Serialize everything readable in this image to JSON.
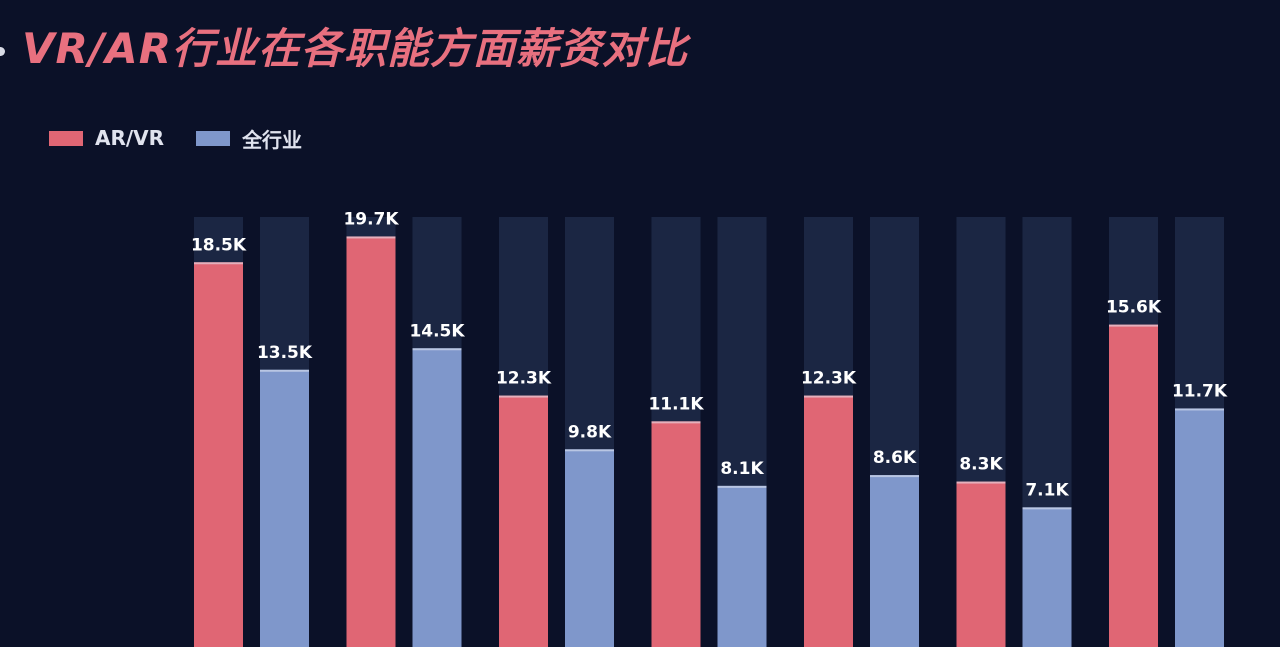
{
  "title": "VR/AR行业在各职能方面薪资对比",
  "colors": {
    "background": "#0b1128",
    "track": "#1b2643",
    "ar_vr": "#e06674",
    "all_industry": "#7f97cb",
    "title": "#e8707f",
    "label": "#ffffff"
  },
  "chart_data": {
    "type": "bar",
    "title": "VR/AR行业在各职能方面薪资对比",
    "categories": [
      "",
      "",
      "",
      "",
      "",
      "",
      ""
    ],
    "series": [
      {
        "name": "AR/VR",
        "color": "#e06674",
        "values": [
          18.5,
          19.7,
          12.3,
          11.1,
          12.3,
          8.3,
          15.6
        ],
        "labels": [
          "18.5K",
          "19.7K",
          "12.3K",
          "11.1K",
          "12.3K",
          "8.3K",
          "15.6K"
        ]
      },
      {
        "name": "全行业",
        "color": "#7f97cb",
        "values": [
          13.5,
          14.5,
          9.8,
          8.1,
          8.6,
          7.1,
          11.7
        ],
        "labels": [
          "13.5K",
          "14.5K",
          "9.8K",
          "8.1K",
          "8.6K",
          "7.1K",
          "11.7K"
        ]
      }
    ],
    "unit": "K",
    "ylim": [
      0,
      26.7
    ],
    "grid": false,
    "legend": "top-left",
    "background_tracks": true
  }
}
